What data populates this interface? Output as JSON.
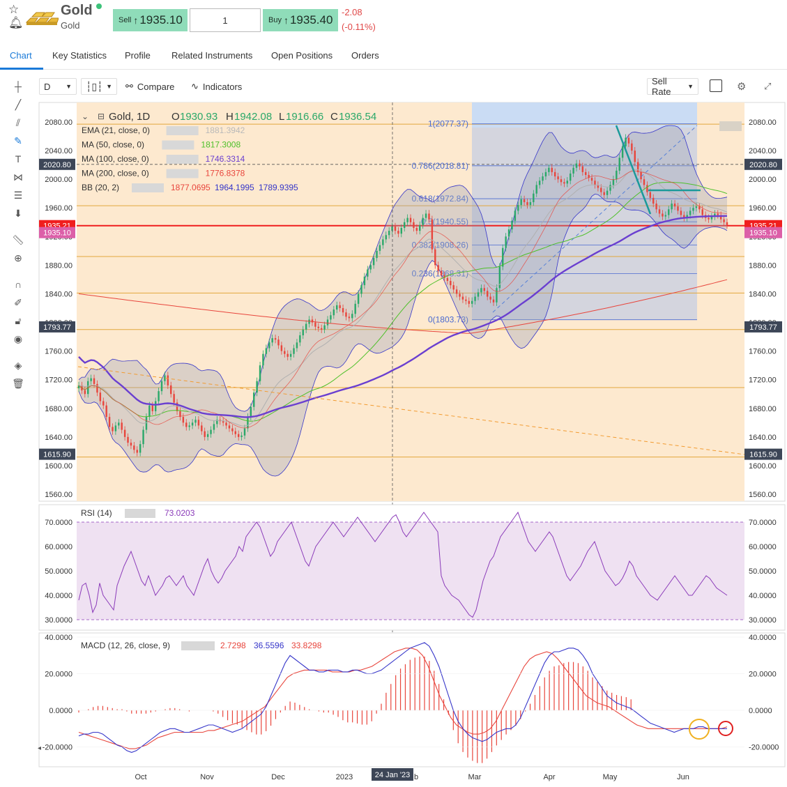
{
  "header": {
    "title": "Gold",
    "subtitle": "Gold",
    "sell_label": "Sell",
    "sell_price": "1935.10",
    "quantity": "1",
    "buy_label": "Buy",
    "buy_price": "1935.40",
    "change_abs": "-2.08",
    "change_pct": "(-0.11%)",
    "colors": {
      "sell_bg": "#8fdcb9",
      "buy_bg": "#8fdcb9",
      "change": "#e04848",
      "live_dot": "#3cc27a"
    }
  },
  "tabs": [
    {
      "label": "Chart",
      "active": true
    },
    {
      "label": "Key Statistics"
    },
    {
      "label": "Profile"
    },
    {
      "label": "Related Instruments"
    },
    {
      "label": "Open Positions"
    },
    {
      "label": "Orders"
    }
  ],
  "toolbar": {
    "interval": "D",
    "compare_label": "Compare",
    "indicators_label": "Indicators",
    "rate_select": "Sell Rate"
  },
  "chart_data": [
    {
      "type": "candlestick",
      "legend": {
        "symbol": "Gold, 1D",
        "open_label": "O",
        "open": "1930.93",
        "high_label": "H",
        "high": "1942.08",
        "low_label": "L",
        "low": "1916.66",
        "close_label": "C",
        "close": "1936.54"
      },
      "indicators": [
        {
          "name": "EMA (21, close, 0)",
          "value": "1881.3942",
          "color": "#b9b9b9"
        },
        {
          "name": "MA (50, close, 0)",
          "value": "1817.3008",
          "color": "#4ec02a"
        },
        {
          "name": "MA (100, close, 0)",
          "value": "1746.3314",
          "color": "#6a3fd0"
        },
        {
          "name": "MA (200, close, 0)",
          "value": "1776.8378",
          "color": "#e8453c"
        },
        {
          "name": "BB (20, 2)",
          "values": [
            "1877.0695",
            "1964.1995",
            "1789.9395"
          ],
          "colors": [
            "#e8453c",
            "#3535c9",
            "#3535c9"
          ]
        }
      ],
      "y_ticks": [
        "2080.00",
        "2040.00",
        "2000.00",
        "1960.00",
        "1920.00",
        "1880.00",
        "1840.00",
        "1800.00",
        "1760.00",
        "1720.00",
        "1680.00",
        "1640.00",
        "1600.00",
        "1560.00"
      ],
      "ylim": [
        1550,
        2100
      ],
      "x_ticks": [
        "Oct",
        "Nov",
        "Dec",
        "2023",
        "Mar",
        "Apr",
        "May",
        "Jun"
      ],
      "crosshair_label": "24 Jan '23",
      "crosshair_partial_tick": "b",
      "price_tags": [
        {
          "label": "2020.80",
          "value": 2020.8,
          "color": "#3d4657"
        },
        {
          "label": "1935.21",
          "value": 1935.21,
          "color": "#f01e1e"
        },
        {
          "label": "1935.10",
          "value": 1925.5,
          "color": "#dc5fa8"
        },
        {
          "label": "1793.77",
          "value": 1793.77,
          "color": "#3d4657"
        },
        {
          "label": "1615.90",
          "value": 1615.9,
          "color": "#3d4657"
        }
      ],
      "fibonacci": [
        {
          "label": "1(2077.37)",
          "value": 2077.37
        },
        {
          "label": "0.786(2018.81)",
          "value": 2018.81
        },
        {
          "label": "0.618(1972.84)",
          "value": 1972.84
        },
        {
          "label": "0.5(1940.55)",
          "value": 1940.55
        },
        {
          "label": "0.382(1908.26)",
          "value": 1908.26
        },
        {
          "label": "0.236(1868.31)",
          "value": 1868.31
        },
        {
          "label": "0(1803.73)",
          "value": 1803.73
        }
      ],
      "horizontal_levels": [
        2077,
        1963,
        1892,
        1841,
        1790,
        1709,
        1612
      ],
      "close_series": [
        1712,
        1705,
        1700,
        1718,
        1722,
        1714,
        1702,
        1690,
        1684,
        1668,
        1654,
        1648,
        1656,
        1660,
        1650,
        1640,
        1632,
        1628,
        1622,
        1618,
        1630,
        1650,
        1668,
        1684,
        1676,
        1690,
        1704,
        1718,
        1726,
        1712,
        1700,
        1688,
        1676,
        1668,
        1660,
        1654,
        1656,
        1660,
        1664,
        1656,
        1648,
        1640,
        1644,
        1650,
        1658,
        1664,
        1662,
        1660,
        1656,
        1652,
        1648,
        1644,
        1640,
        1642,
        1652,
        1668,
        1682,
        1702,
        1718,
        1740,
        1756,
        1764,
        1772,
        1778,
        1776,
        1768,
        1760,
        1756,
        1752,
        1756,
        1764,
        1772,
        1782,
        1790,
        1798,
        1804,
        1800,
        1794,
        1792,
        1790,
        1796,
        1804,
        1810,
        1818,
        1824,
        1820,
        1814,
        1808,
        1806,
        1812,
        1826,
        1840,
        1852,
        1864,
        1874,
        1880,
        1890,
        1900,
        1908,
        1916,
        1922,
        1928,
        1934,
        1928,
        1924,
        1932,
        1940,
        1946,
        1940,
        1932,
        1928,
        1936,
        1946,
        1952,
        1944,
        1902,
        1880,
        1872,
        1866,
        1862,
        1858,
        1852,
        1846,
        1840,
        1836,
        1832,
        1830,
        1826,
        1830,
        1836,
        1842,
        1848,
        1844,
        1836,
        1832,
        1828,
        1848,
        1878,
        1904,
        1920,
        1930,
        1942,
        1956,
        1964,
        1972,
        1968,
        1964,
        1968,
        1980,
        1992,
        1998,
        2004,
        2010,
        2016,
        2010,
        2004,
        2000,
        1996,
        1994,
        1998,
        2008,
        2016,
        2022,
        2018,
        2010,
        2006,
        2002,
        1998,
        1992,
        1988,
        1982,
        1978,
        1984,
        1992,
        2000,
        2012,
        2030,
        2046,
        2058,
        2050,
        2040,
        2024,
        2010,
        2000,
        1992,
        1982,
        1974,
        1966,
        1958,
        1952,
        1948,
        1950,
        1958,
        1966,
        1962,
        1956,
        1950,
        1946,
        1950,
        1956,
        1960,
        1962,
        1958,
        1950,
        1946,
        1944,
        1948,
        1952,
        1950,
        1944,
        1940,
        1936
      ],
      "rsi": {
        "label": "RSI (14)",
        "value": "73.0203",
        "color": "#8a3ab9",
        "y_ticks": [
          "70.0000",
          "60.0000",
          "50.0000",
          "40.0000",
          "30.0000"
        ],
        "ylim": [
          25,
          75
        ],
        "band": [
          30,
          70
        ],
        "series": [
          38,
          44,
          45,
          40,
          33,
          36,
          45,
          40,
          38,
          36,
          34,
          44,
          48,
          52,
          55,
          58,
          54,
          50,
          46,
          44,
          48,
          44,
          40,
          42,
          44,
          47,
          48,
          46,
          44,
          46,
          48,
          44,
          42,
          40,
          44,
          48,
          52,
          55,
          50,
          47,
          45,
          47,
          50,
          52,
          54,
          56,
          60,
          58,
          64,
          66,
          68,
          70,
          68,
          64,
          60,
          56,
          58,
          62,
          64,
          66,
          68,
          70,
          66,
          62,
          58,
          54,
          52,
          56,
          60,
          62,
          64,
          66,
          68,
          70,
          68,
          66,
          64,
          66,
          68,
          70,
          72,
          70,
          68,
          66,
          64,
          62,
          64,
          66,
          68,
          70,
          72,
          73,
          70,
          66,
          64,
          66,
          68,
          70,
          72,
          74,
          72,
          70,
          68,
          66,
          48,
          44,
          42,
          40,
          39,
          38,
          36,
          34,
          32,
          31,
          34,
          40,
          46,
          50,
          54,
          56,
          60,
          64,
          66,
          68,
          70,
          72,
          74,
          70,
          66,
          62,
          60,
          58,
          60,
          62,
          64,
          66,
          64,
          60,
          56,
          52,
          48,
          46,
          48,
          50,
          52,
          55,
          58,
          60,
          62,
          58,
          54,
          50,
          48,
          46,
          44,
          45,
          47,
          50,
          54,
          52,
          48,
          46,
          44,
          42,
          40,
          39,
          38,
          40,
          42,
          44,
          46,
          48,
          46,
          44,
          42,
          40,
          40,
          42,
          44,
          46,
          48,
          47,
          45,
          43,
          42,
          41,
          40
        ],
        "series_names": []
      },
      "macd": {
        "label": "MACD (12, 26, close, 9)",
        "values": [
          "2.7298",
          "36.5596",
          "33.8298"
        ],
        "colors": [
          "#e8453c",
          "#3535c9",
          "#e8453c"
        ],
        "y_ticks": [
          "40.0000",
          "20.0000",
          "0.0000",
          "-20.0000"
        ],
        "ylim": [
          -26,
          41
        ],
        "macd_line": [
          -14,
          -13,
          -13,
          -12,
          -12,
          -13,
          -15,
          -17,
          -19,
          -20,
          -22,
          -23,
          -22,
          -20,
          -18,
          -16,
          -14,
          -12,
          -11,
          -10,
          -10,
          -11,
          -12,
          -12,
          -11,
          -10,
          -9,
          -8,
          -8,
          -9,
          -10,
          -11,
          -12,
          -11,
          -10,
          -8,
          -6,
          -4,
          -2,
          2,
          8,
          14,
          20,
          26,
          30,
          28,
          26,
          24,
          22,
          22,
          21,
          21,
          22,
          22,
          22,
          21,
          21,
          22,
          22,
          21,
          20,
          20,
          21,
          22,
          24,
          26,
          28,
          30,
          32,
          34,
          35,
          36,
          37,
          35,
          30,
          24,
          16,
          8,
          0,
          -6,
          -10,
          -13,
          -15,
          -16,
          -17,
          -16,
          -14,
          -12,
          -11,
          -10,
          -10,
          -8,
          -4,
          2,
          8,
          14,
          20,
          26,
          30,
          32,
          32,
          33,
          34,
          34,
          33,
          30,
          26,
          20,
          16,
          12,
          8,
          6,
          4,
          3,
          2,
          1,
          -1,
          -3,
          -5,
          -7,
          -8,
          -9,
          -10,
          -11,
          -12,
          -11,
          -10,
          -10,
          -10,
          -9,
          -9,
          -10,
          -10,
          -10,
          -10,
          -10
        ],
        "signal_line": [
          -12,
          -13,
          -14,
          -15,
          -16,
          -17,
          -18,
          -19,
          -20,
          -21,
          -21,
          -20,
          -19,
          -17,
          -15,
          -14,
          -13,
          -12,
          -12,
          -12,
          -12,
          -12,
          -12,
          -11,
          -11,
          -10,
          -9,
          -8,
          -7,
          -6,
          -4,
          -2,
          0,
          2,
          6,
          10,
          14,
          18,
          20,
          21,
          22,
          22,
          22,
          22,
          22,
          21,
          21,
          21,
          21,
          22,
          22,
          23,
          24,
          26,
          28,
          30,
          32,
          33,
          34,
          34,
          33,
          30,
          24,
          16,
          8,
          2,
          -4,
          -8,
          -10,
          -12,
          -13,
          -13,
          -12,
          -10,
          -6,
          0,
          6,
          12,
          18,
          24,
          28,
          30,
          31,
          32,
          31,
          28,
          24,
          20,
          16,
          12,
          8,
          6,
          4,
          3,
          2,
          0,
          -2,
          -4,
          -6,
          -8,
          -9,
          -10,
          -10,
          -10,
          -10,
          -10,
          -10,
          -10,
          -10,
          -10,
          -10,
          -10,
          -10,
          -10,
          -10,
          -9
        ],
        "series_names": []
      }
    }
  ]
}
